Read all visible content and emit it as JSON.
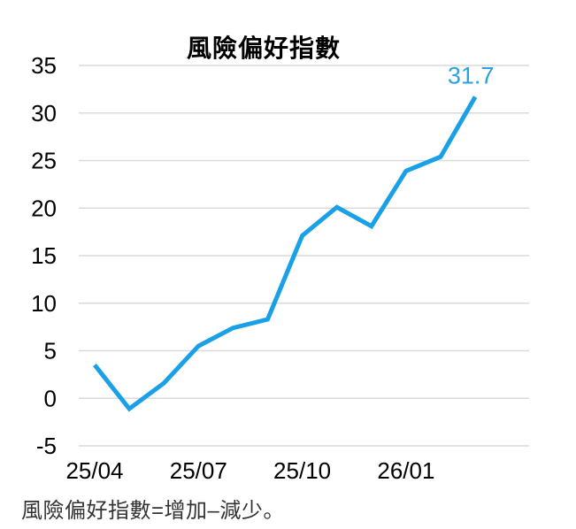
{
  "chart": {
    "footnote": "風險偏好指數=增加–減少。",
    "line_color": "#1AA0E6",
    "label_color": "#2AA2DE",
    "grid_color": "#DADADA",
    "text_color": "#000000",
    "footnote_color": "#333333"
  },
  "chart_data": {
    "type": "line",
    "title": "風險偏好指數",
    "x": [
      "25/04",
      "25/05",
      "25/06",
      "25/07",
      "25/08",
      "25/09",
      "25/10",
      "25/11",
      "25/12",
      "26/01",
      "26/02",
      "26/03"
    ],
    "values": [
      3.5,
      -1.1,
      1.6,
      5.5,
      7.4,
      8.3,
      17.1,
      20.1,
      18.1,
      23.9,
      25.4,
      31.7
    ],
    "xlabel": "",
    "ylabel": "",
    "ylim": [
      -5,
      35
    ],
    "yticks": [
      35,
      30,
      25,
      20,
      15,
      10,
      5,
      0,
      -5
    ],
    "xticks_shown": [
      "25/04",
      "25/07",
      "25/10",
      "26/01"
    ],
    "grid": true,
    "legend": false,
    "annotation": {
      "text": "31.7",
      "x": "26/03",
      "y": 31.7
    }
  }
}
